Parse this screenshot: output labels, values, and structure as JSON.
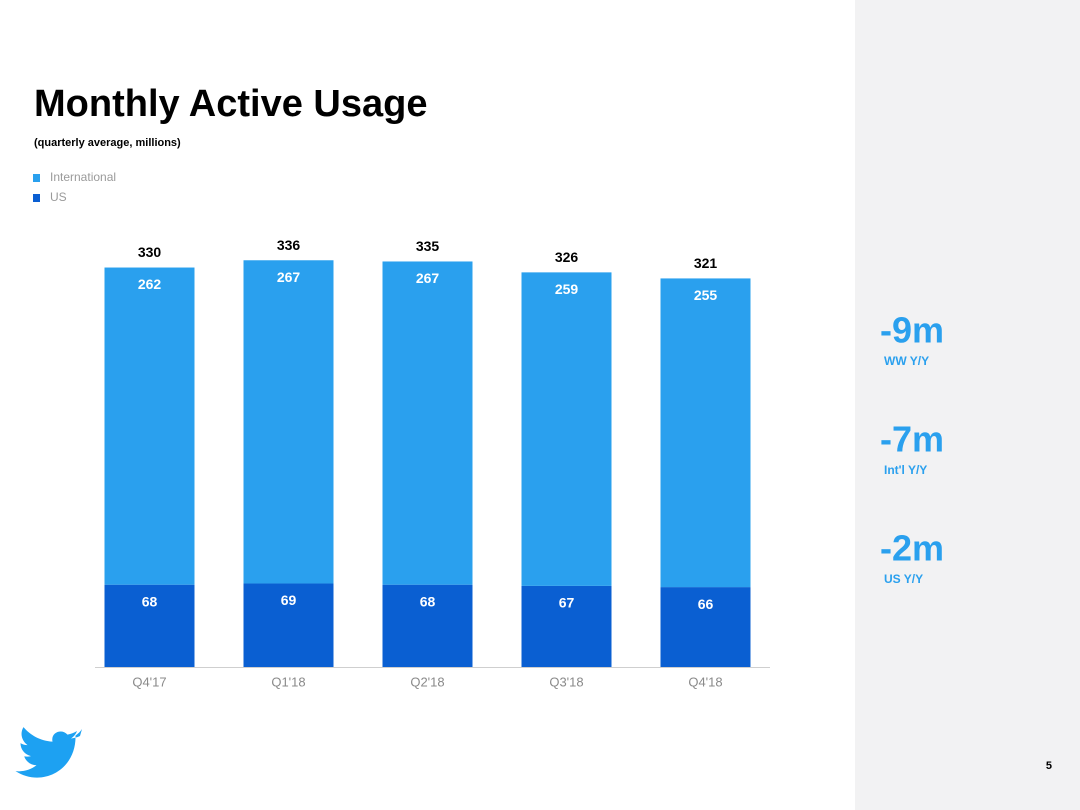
{
  "chart_data": {
    "type": "stacked_bar",
    "title": "Monthly Active Usage",
    "subtitle": "(quarterly average, millions)",
    "categories": [
      "Q4'17",
      "Q1'18",
      "Q2'18",
      "Q3'18",
      "Q4'18"
    ],
    "series": [
      {
        "name": "International",
        "color": "#2aa0ee",
        "values": [
          262,
          267,
          267,
          259,
          255
        ]
      },
      {
        "name": "US",
        "color": "#0a5fd2",
        "values": [
          68,
          69,
          68,
          67,
          66
        ]
      }
    ],
    "totals": [
      330,
      336,
      335,
      326,
      321
    ],
    "ylim": [
      0,
      380
    ]
  },
  "side_stats": [
    {
      "value": "-9m",
      "label": "WW Y/Y"
    },
    {
      "value": "-7m",
      "label": "Int'l Y/Y"
    },
    {
      "value": "-2m",
      "label": "US Y/Y"
    }
  ],
  "page_number": "5"
}
